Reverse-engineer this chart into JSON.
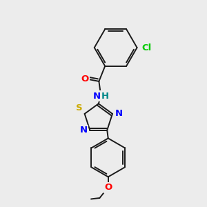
{
  "background_color": "#ececec",
  "bond_color": "#1a1a1a",
  "atom_colors": {
    "O": "#ff0000",
    "N": "#0000ff",
    "S": "#ccaa00",
    "Cl": "#00cc00",
    "H": "#008888",
    "C": "#1a1a1a"
  },
  "lw": 1.4,
  "fs": 9.5
}
